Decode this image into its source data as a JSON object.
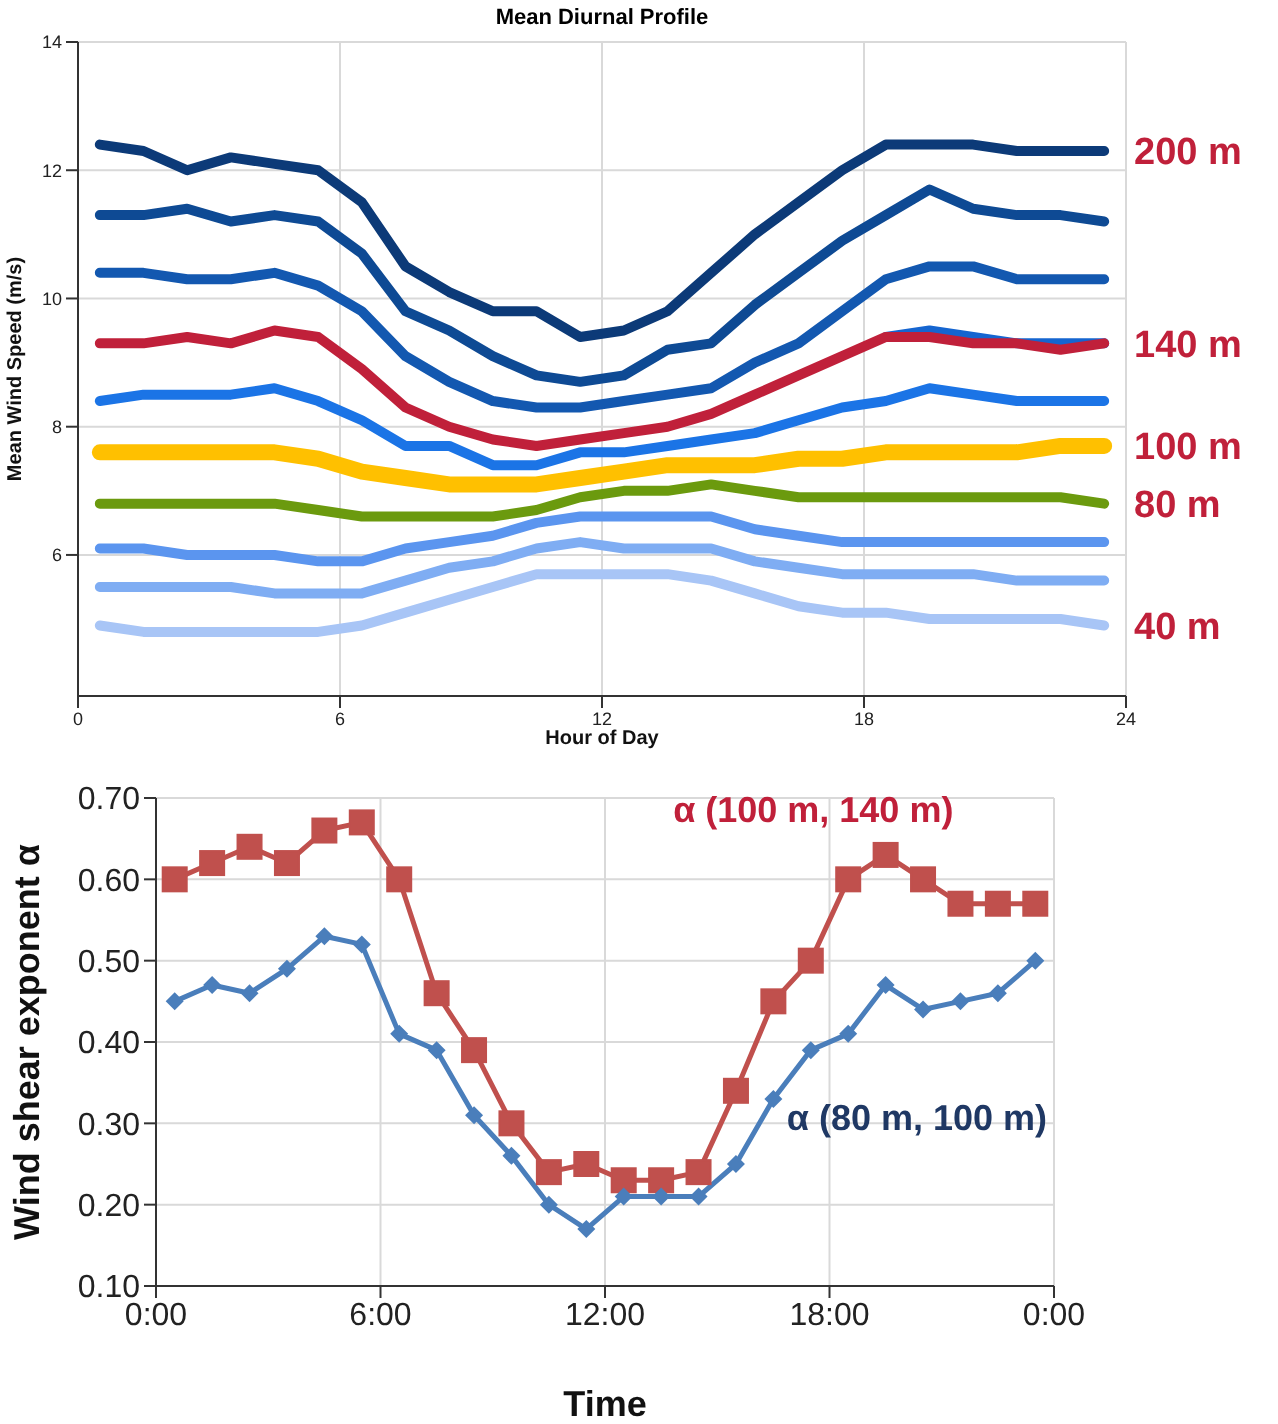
{
  "chart_data": [
    {
      "type": "line",
      "title": "Mean Diurnal Profile",
      "xlabel": "Hour of Day",
      "ylabel": "Mean Wind Speed (m/s)",
      "x": [
        0.5,
        1.5,
        2.5,
        3.5,
        4.5,
        5.5,
        6.5,
        7.5,
        8.5,
        9.5,
        10.5,
        11.5,
        12.5,
        13.5,
        14.5,
        15.5,
        16.5,
        17.5,
        18.5,
        19.5,
        20.5,
        21.5,
        22.5,
        23.5
      ],
      "xlim": [
        0,
        24
      ],
      "xticks": [
        0,
        6,
        12,
        18,
        24
      ],
      "ylim": [
        3.8,
        14
      ],
      "yticks": [
        6,
        8,
        10,
        12,
        14
      ],
      "grid": true,
      "marker": "none",
      "series": [
        {
          "name": "200 m",
          "color": "#0c3a78",
          "values": [
            12.4,
            12.3,
            12.0,
            12.2,
            12.1,
            12.0,
            11.5,
            10.5,
            10.1,
            9.8,
            9.8,
            9.4,
            9.5,
            9.8,
            10.4,
            11.0,
            11.5,
            12.0,
            12.4,
            12.4,
            12.4,
            12.3,
            12.3,
            12.3
          ]
        },
        {
          "color": "#0e4a94",
          "values": [
            11.3,
            11.3,
            11.4,
            11.2,
            11.3,
            11.2,
            10.7,
            9.8,
            9.5,
            9.1,
            8.8,
            8.7,
            8.8,
            9.2,
            9.3,
            9.9,
            10.4,
            10.9,
            11.3,
            11.7,
            11.4,
            11.3,
            11.3,
            11.2
          ]
        },
        {
          "color": "#1358b0",
          "values": [
            10.4,
            10.4,
            10.3,
            10.3,
            10.4,
            10.2,
            9.8,
            9.1,
            8.7,
            8.4,
            8.3,
            8.3,
            8.4,
            8.5,
            8.6,
            9.0,
            9.3,
            9.8,
            10.3,
            10.5,
            10.5,
            10.3,
            10.3,
            10.3
          ]
        },
        {
          "color": "#1565d0",
          "values": [
            null,
            null,
            null,
            null,
            null,
            null,
            null,
            null,
            null,
            null,
            null,
            null,
            null,
            null,
            null,
            null,
            null,
            null,
            9.4,
            9.5,
            9.4,
            9.3,
            9.3,
            9.3
          ]
        },
        {
          "name": "140 m",
          "color": "#c0203a",
          "values": [
            9.3,
            9.3,
            9.4,
            9.3,
            9.5,
            9.4,
            8.9,
            8.3,
            8.0,
            7.8,
            7.7,
            7.8,
            7.9,
            8.0,
            8.2,
            8.5,
            8.8,
            9.1,
            9.4,
            9.4,
            9.3,
            9.3,
            9.2,
            9.3
          ]
        },
        {
          "color": "#1b74e6",
          "values": [
            8.4,
            8.5,
            8.5,
            8.5,
            8.6,
            8.4,
            8.1,
            7.7,
            7.7,
            7.4,
            7.4,
            7.6,
            7.6,
            7.7,
            7.8,
            7.9,
            8.1,
            8.3,
            8.4,
            8.6,
            8.5,
            8.4,
            8.4,
            8.4
          ]
        },
        {
          "name": "100 m",
          "color": "#ffc000",
          "values": [
            7.6,
            7.6,
            7.6,
            7.6,
            7.6,
            7.5,
            7.3,
            7.2,
            7.1,
            7.1,
            7.1,
            7.2,
            7.3,
            7.4,
            7.4,
            7.4,
            7.5,
            7.5,
            7.6,
            7.6,
            7.6,
            7.6,
            7.7,
            7.7
          ]
        },
        {
          "name": "80 m",
          "color": "#6b9a0e",
          "values": [
            6.8,
            6.8,
            6.8,
            6.8,
            6.8,
            6.7,
            6.6,
            6.6,
            6.6,
            6.6,
            6.7,
            6.9,
            7.0,
            7.0,
            7.1,
            7.0,
            6.9,
            6.9,
            6.9,
            6.9,
            6.9,
            6.9,
            6.9,
            6.8
          ]
        },
        {
          "color": "#5b95ef",
          "values": [
            6.1,
            6.1,
            6.0,
            6.0,
            6.0,
            5.9,
            5.9,
            6.1,
            6.2,
            6.3,
            6.5,
            6.6,
            6.6,
            6.6,
            6.6,
            6.4,
            6.3,
            6.2,
            6.2,
            6.2,
            6.2,
            6.2,
            6.2,
            6.2
          ]
        },
        {
          "color": "#7fadf3",
          "values": [
            5.5,
            5.5,
            5.5,
            5.5,
            5.4,
            5.4,
            5.4,
            5.6,
            5.8,
            5.9,
            6.1,
            6.2,
            6.1,
            6.1,
            6.1,
            5.9,
            5.8,
            5.7,
            5.7,
            5.7,
            5.7,
            5.6,
            5.6,
            5.6
          ]
        },
        {
          "name": "40 m",
          "color": "#a8c5f6",
          "values": [
            4.9,
            4.8,
            4.8,
            4.8,
            4.8,
            4.8,
            4.9,
            5.1,
            5.3,
            5.5,
            5.7,
            5.7,
            5.7,
            5.7,
            5.6,
            5.4,
            5.2,
            5.1,
            5.1,
            5.0,
            5.0,
            5.0,
            5.0,
            4.9
          ]
        }
      ]
    },
    {
      "type": "line",
      "xlabel": "Time",
      "ylabel": "Wind shear exponent α",
      "x": [
        0.5,
        1.5,
        2.5,
        3.5,
        4.5,
        5.5,
        6.5,
        7.5,
        8.5,
        9.5,
        10.5,
        11.5,
        12.5,
        13.5,
        14.5,
        15.5,
        16.5,
        17.5,
        18.5,
        19.5,
        20.5,
        21.5,
        22.5,
        23.5
      ],
      "xlim": [
        0,
        24
      ],
      "xticks": [
        {
          "value": 0,
          "label": "0:00"
        },
        {
          "value": 6,
          "label": "6:00"
        },
        {
          "value": 12,
          "label": "12:00"
        },
        {
          "value": 18,
          "label": "18:00"
        },
        {
          "value": 24,
          "label": "0:00"
        }
      ],
      "ylim": [
        0.1,
        0.7
      ],
      "yticks": [
        {
          "value": 0.1,
          "label": "0.10"
        },
        {
          "value": 0.2,
          "label": "0.20"
        },
        {
          "value": 0.3,
          "label": "0.30"
        },
        {
          "value": 0.4,
          "label": "0.40"
        },
        {
          "value": 0.5,
          "label": "0.50"
        },
        {
          "value": 0.6,
          "label": "0.60"
        },
        {
          "value": 0.7,
          "label": "0.70"
        }
      ],
      "grid": true,
      "series": [
        {
          "name": "α (100 m, 140 m)",
          "color": "#c0504d",
          "marker": "square",
          "values": [
            0.6,
            0.62,
            0.64,
            0.62,
            0.66,
            0.67,
            0.6,
            0.46,
            0.39,
            0.3,
            0.24,
            0.25,
            0.23,
            0.23,
            0.24,
            0.34,
            0.45,
            0.5,
            0.6,
            0.63,
            0.6,
            0.57,
            0.57,
            0.57
          ]
        },
        {
          "name": "α (80 m, 100 m)",
          "color": "#4a7ebb",
          "marker": "diamond",
          "values": [
            0.45,
            0.47,
            0.46,
            0.49,
            0.53,
            0.52,
            0.41,
            0.39,
            0.31,
            0.26,
            0.2,
            0.17,
            0.21,
            0.21,
            0.21,
            0.25,
            0.33,
            0.39,
            0.41,
            0.47,
            0.44,
            0.45,
            0.46,
            0.5
          ]
        }
      ]
    }
  ]
}
